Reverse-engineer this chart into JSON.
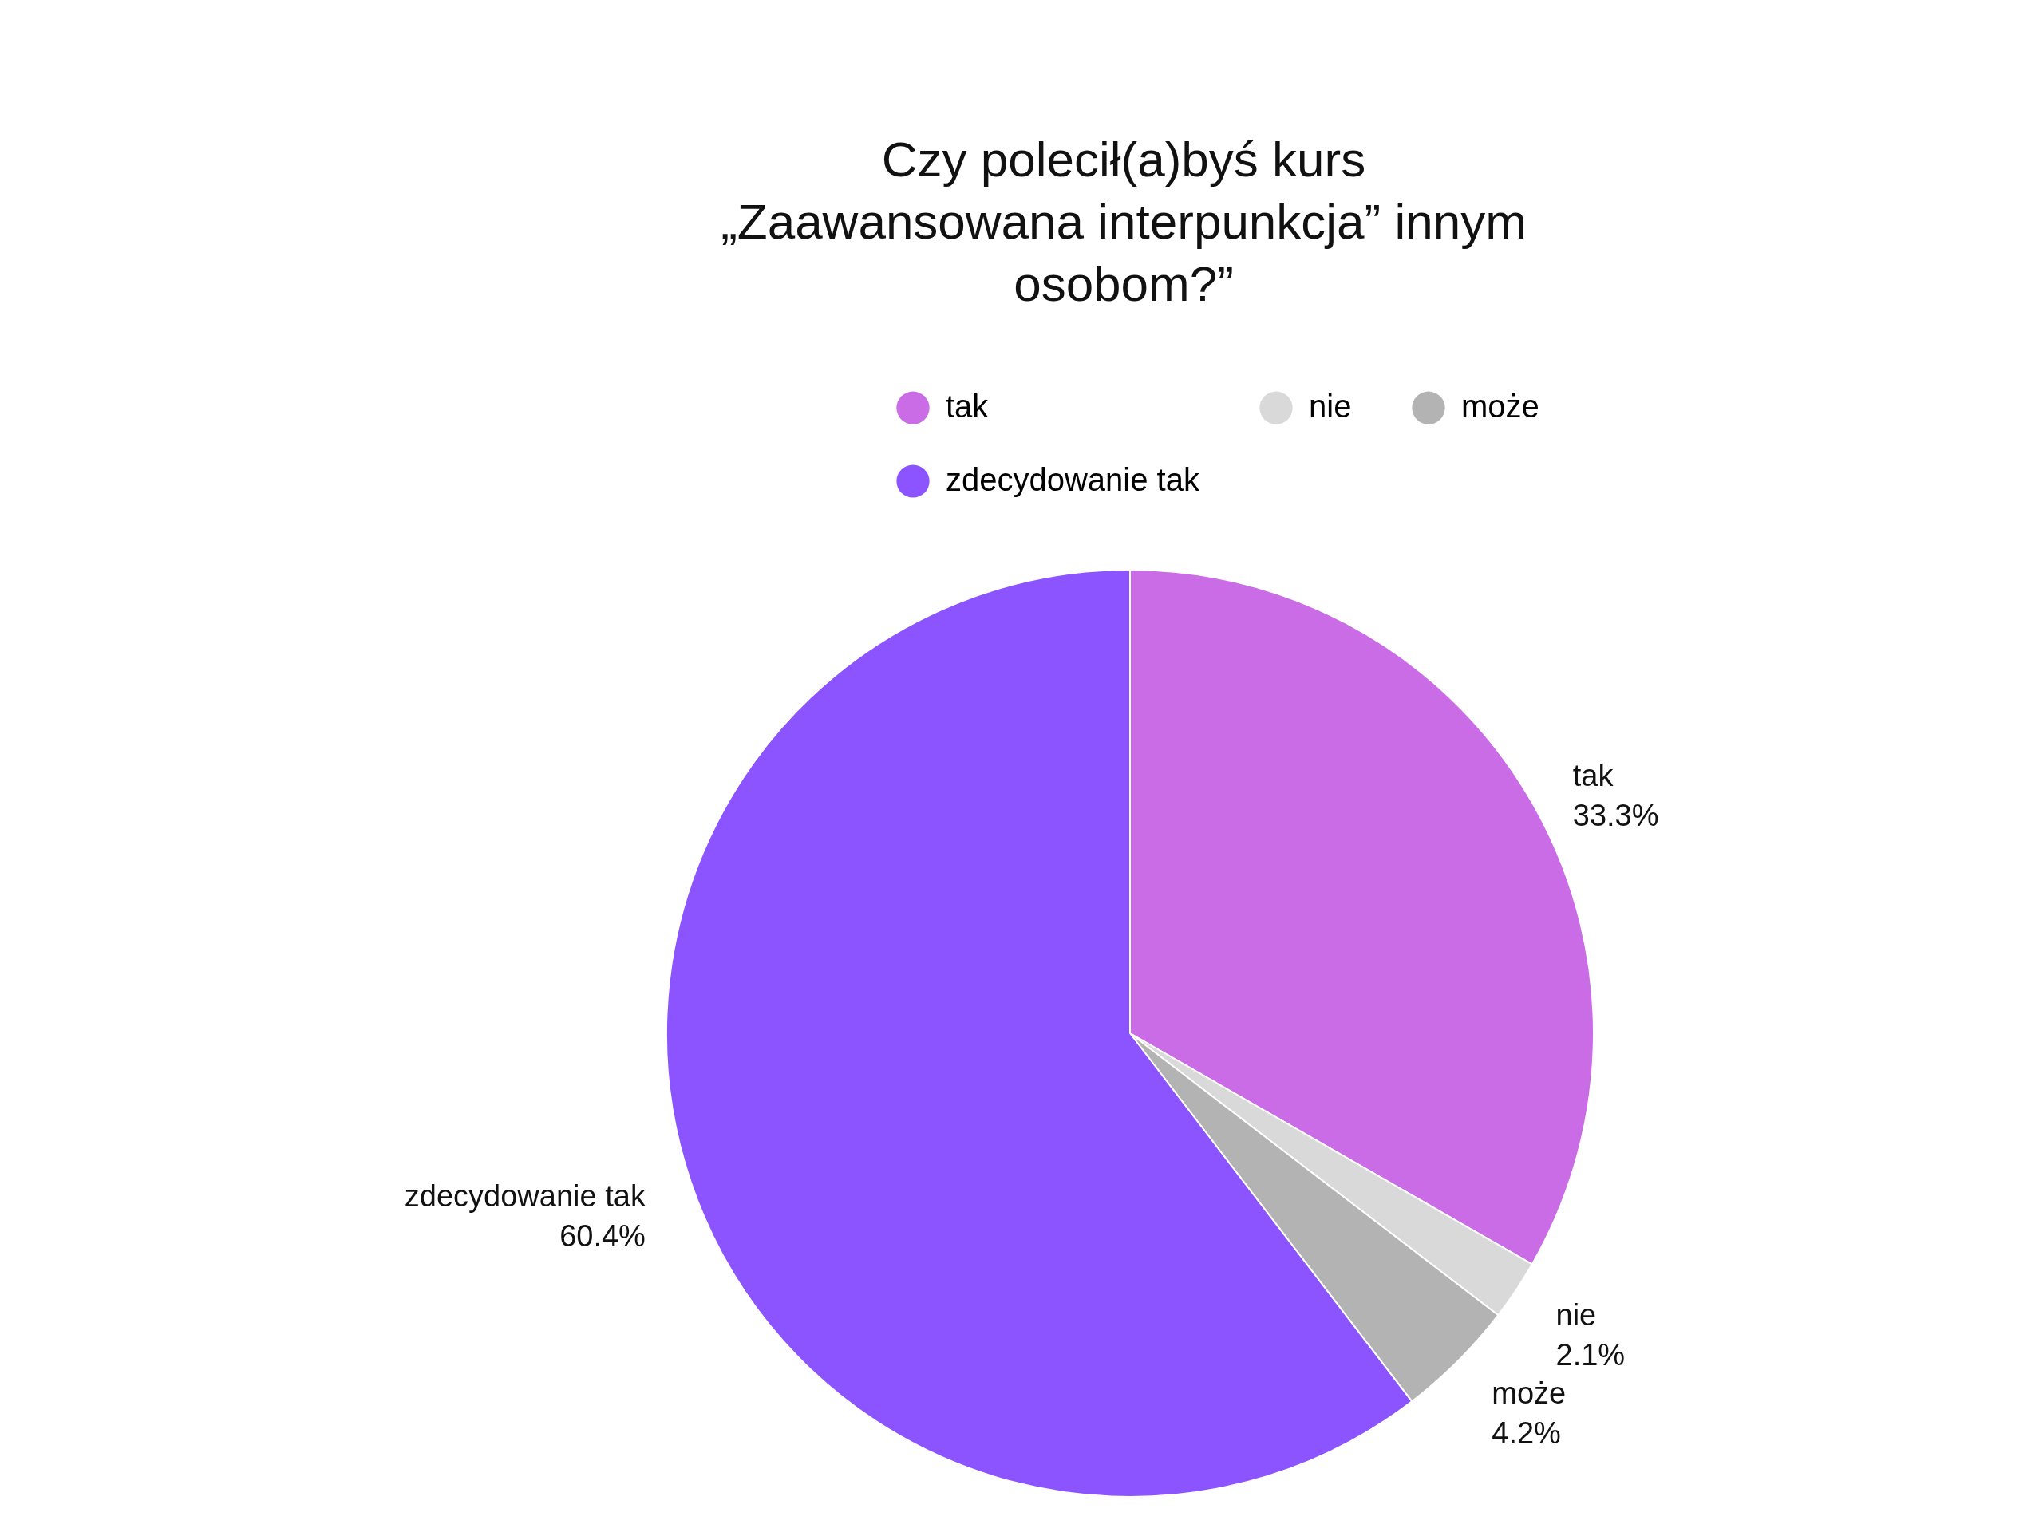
{
  "chart_data": {
    "type": "pie",
    "title": "Czy polecił(a)byś kurs\n„Zaawansowana interpunkcja” innym\nosobom?”",
    "categories": [
      "tak",
      "nie",
      "może",
      "zdecydowanie tak"
    ],
    "values": [
      33.3,
      2.1,
      4.2,
      60.4
    ],
    "colors": [
      "#c96ce6",
      "#d9d9d9",
      "#b3b3b3",
      "#8b54ff"
    ],
    "value_labels": [
      "33.3%",
      "2.1%",
      "4.2%",
      "60.4%"
    ],
    "legend": "top"
  }
}
